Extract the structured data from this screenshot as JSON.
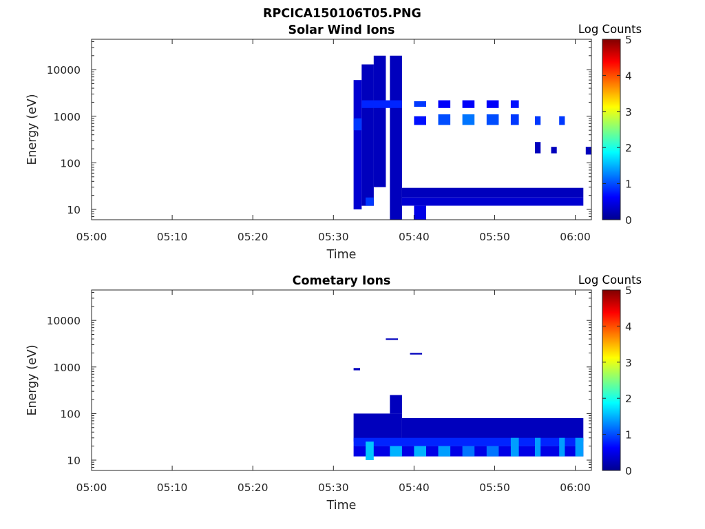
{
  "figure": {
    "title": "RPCICA150106T05.PNG"
  },
  "chart_data": [
    {
      "type": "heatmap",
      "title": "Solar Wind Ions",
      "xlabel": "Time",
      "ylabel": "Energy (eV)",
      "y_scale": "log",
      "xlim": [
        "05:00",
        "06:02"
      ],
      "ylim": [
        6,
        45000
      ],
      "x_ticks": [
        "05:00",
        "05:10",
        "05:20",
        "05:30",
        "05:40",
        "05:50",
        "06:00"
      ],
      "y_ticks": [
        "10",
        "100",
        "1000",
        "10000"
      ],
      "colorbar": {
        "label": "Log Counts",
        "min": 0,
        "max": 5,
        "ticks": [
          "0",
          "1",
          "2",
          "3",
          "4",
          "5"
        ]
      },
      "cells": [
        {
          "t0": "05:32.5",
          "t1": "05:33.5",
          "e0": 10,
          "e1": 6000,
          "v": 0.4
        },
        {
          "t0": "05:33.5",
          "t1": "05:35",
          "e0": 12,
          "e1": 13000,
          "v": 0.3
        },
        {
          "t0": "05:35",
          "t1": "05:36.5",
          "e0": 30,
          "e1": 20000,
          "v": 0.3
        },
        {
          "t0": "05:37",
          "t1": "05:38.5",
          "e0": 6,
          "e1": 20000,
          "v": 0.3
        },
        {
          "t0": "05:33.5",
          "t1": "05:38.5",
          "e0": 1500,
          "e1": 2200,
          "v": 0.8
        },
        {
          "t0": "05:32.5",
          "t1": "05:33.5",
          "e0": 500,
          "e1": 900,
          "v": 0.9
        },
        {
          "t0": "05:38.5",
          "t1": "06:01",
          "e0": 18,
          "e1": 29,
          "v": 0.3
        },
        {
          "t0": "05:38.5",
          "t1": "06:01",
          "e0": 12,
          "e1": 18,
          "v": 0.4
        },
        {
          "t0": "05:34",
          "t1": "05:35",
          "e0": 12,
          "e1": 18,
          "v": 0.9
        },
        {
          "t0": "05:40",
          "t1": "05:41.5",
          "e0": 6,
          "e1": 12,
          "v": 0.5
        },
        {
          "t0": "05:40",
          "t1": "05:41.5",
          "e0": 1600,
          "e1": 2100,
          "v": 0.9
        },
        {
          "t0": "05:40",
          "t1": "05:41.5",
          "e0": 650,
          "e1": 1000,
          "v": 0.7
        },
        {
          "t0": "05:43",
          "t1": "05:44.5",
          "e0": 650,
          "e1": 1100,
          "v": 1.0
        },
        {
          "t0": "05:43",
          "t1": "05:44.5",
          "e0": 1500,
          "e1": 2200,
          "v": 0.6
        },
        {
          "t0": "05:46",
          "t1": "05:47.5",
          "e0": 650,
          "e1": 1100,
          "v": 1.2
        },
        {
          "t0": "05:46",
          "t1": "05:47.5",
          "e0": 1500,
          "e1": 2200,
          "v": 0.6
        },
        {
          "t0": "05:49",
          "t1": "05:50.5",
          "e0": 650,
          "e1": 1100,
          "v": 1.0
        },
        {
          "t0": "05:49",
          "t1": "05:50.5",
          "e0": 1500,
          "e1": 2200,
          "v": 0.6
        },
        {
          "t0": "05:52",
          "t1": "05:53",
          "e0": 650,
          "e1": 1100,
          "v": 0.9
        },
        {
          "t0": "05:52",
          "t1": "05:53",
          "e0": 1500,
          "e1": 2200,
          "v": 0.7
        },
        {
          "t0": "05:55",
          "t1": "05:55.7",
          "e0": 650,
          "e1": 1000,
          "v": 0.9
        },
        {
          "t0": "05:58",
          "t1": "05:58.7",
          "e0": 650,
          "e1": 1000,
          "v": 0.9
        },
        {
          "t0": "05:55",
          "t1": "05:55.7",
          "e0": 160,
          "e1": 280,
          "v": 0.3
        },
        {
          "t0": "05:57",
          "t1": "05:57.7",
          "e0": 160,
          "e1": 220,
          "v": 0.3
        },
        {
          "t0": "06:01.3",
          "t1": "06:02",
          "e0": 150,
          "e1": 220,
          "v": 0.3
        }
      ]
    },
    {
      "type": "heatmap",
      "title": "Cometary Ions",
      "xlabel": "Time",
      "ylabel": "Energy (eV)",
      "y_scale": "log",
      "xlim": [
        "05:00",
        "06:02"
      ],
      "ylim": [
        6,
        45000
      ],
      "x_ticks": [
        "05:00",
        "05:10",
        "05:20",
        "05:30",
        "05:40",
        "05:50",
        "06:00"
      ],
      "y_ticks": [
        "10",
        "100",
        "1000",
        "10000"
      ],
      "colorbar": {
        "label": "Log Counts",
        "min": 0,
        "max": 5,
        "ticks": [
          "0",
          "1",
          "2",
          "3",
          "4",
          "5"
        ]
      },
      "cells": [
        {
          "t0": "05:32.5",
          "t1": "05:38.5",
          "e0": 25,
          "e1": 100,
          "v": 0.3
        },
        {
          "t0": "05:37",
          "t1": "05:38.5",
          "e0": 100,
          "e1": 250,
          "v": 0.3
        },
        {
          "t0": "05:38.5",
          "t1": "06:01",
          "e0": 25,
          "e1": 80,
          "v": 0.3
        },
        {
          "t0": "05:32.5",
          "t1": "06:01",
          "e0": 20,
          "e1": 30,
          "v": 0.8
        },
        {
          "t0": "05:32.5",
          "t1": "06:01",
          "e0": 12,
          "e1": 20,
          "v": 0.5
        },
        {
          "t0": "05:34",
          "t1": "05:35",
          "e0": 10,
          "e1": 25,
          "v": 1.6
        },
        {
          "t0": "05:37",
          "t1": "05:38.5",
          "e0": 12,
          "e1": 20,
          "v": 1.5
        },
        {
          "t0": "05:40",
          "t1": "05:41.5",
          "e0": 12,
          "e1": 20,
          "v": 1.5
        },
        {
          "t0": "05:43",
          "t1": "05:44.5",
          "e0": 12,
          "e1": 20,
          "v": 1.4
        },
        {
          "t0": "05:46",
          "t1": "05:47.5",
          "e0": 12,
          "e1": 20,
          "v": 1.2
        },
        {
          "t0": "05:49",
          "t1": "05:50.5",
          "e0": 12,
          "e1": 20,
          "v": 1.2
        },
        {
          "t0": "05:52",
          "t1": "05:53",
          "e0": 12,
          "e1": 30,
          "v": 1.4
        },
        {
          "t0": "05:55",
          "t1": "05:55.7",
          "e0": 12,
          "e1": 30,
          "v": 1.4
        },
        {
          "t0": "05:58",
          "t1": "05:58.7",
          "e0": 12,
          "e1": 30,
          "v": 1.4
        },
        {
          "t0": "06:00",
          "t1": "06:01",
          "e0": 12,
          "e1": 30,
          "v": 1.4
        },
        {
          "t0": "05:36.5",
          "t1": "05:38",
          "e0": 3800,
          "e1": 4100,
          "v": 0.3
        },
        {
          "t0": "05:39.5",
          "t1": "05:41",
          "e0": 1850,
          "e1": 2000,
          "v": 0.3
        },
        {
          "t0": "05:32.5",
          "t1": "05:33.3",
          "e0": 850,
          "e1": 950,
          "v": 0.3
        }
      ]
    }
  ]
}
